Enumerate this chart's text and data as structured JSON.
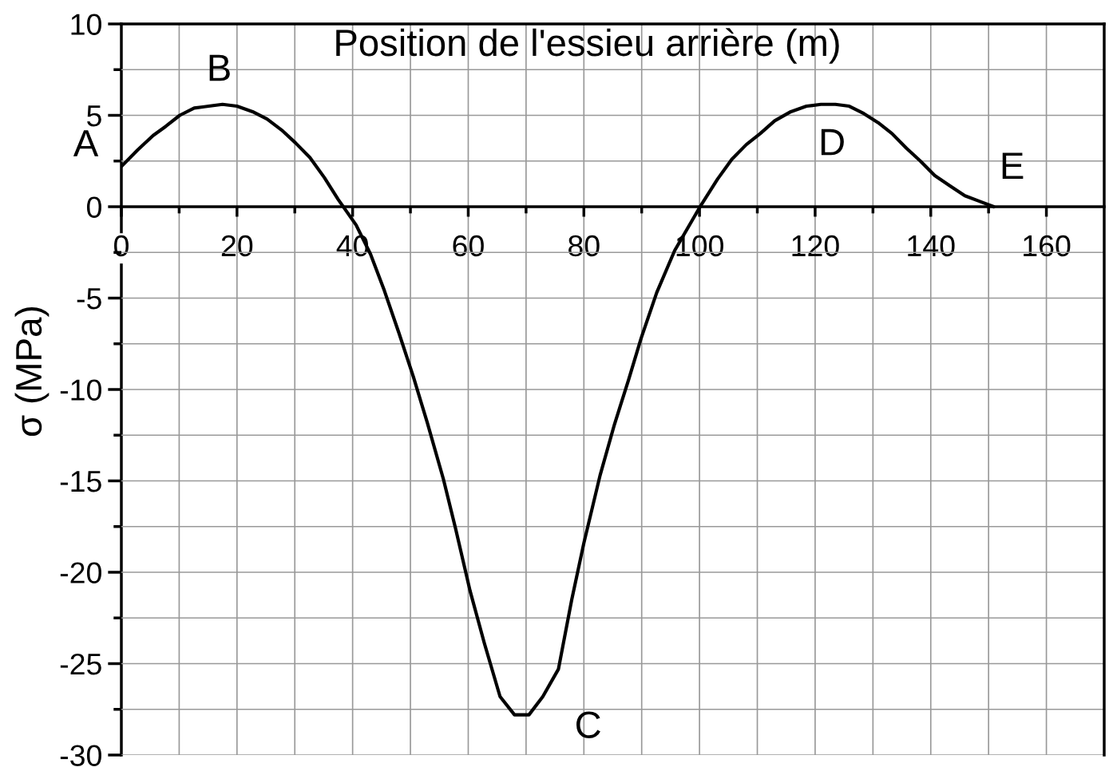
{
  "chart_data": {
    "type": "line",
    "xlabel": "Position de l'essieu arrière (m)",
    "ylabel": "σ (MPa)",
    "x": [
      0,
      2.8,
      5.5,
      7.7,
      10.1,
      12.6,
      15.1,
      17.5,
      20,
      22.7,
      25.2,
      27.7,
      30.1,
      32.6,
      35.1,
      37.5,
      40.6,
      43.1,
      45.5,
      48,
      50.5,
      52.9,
      55.7,
      57.8,
      60.3,
      62.8,
      65.5,
      68,
      70.5,
      72.9,
      75.6,
      77.9,
      80,
      82.8,
      85.3,
      87.7,
      89.9,
      92.6,
      95.7,
      100.1,
      103.1,
      105.6,
      108.1,
      110.5,
      113,
      115.8,
      118.5,
      121,
      123.5,
      125.9,
      128.4,
      130.9,
      133.3,
      135.8,
      138.2,
      140.7,
      143.5,
      145.9,
      148.4,
      150.9
    ],
    "series": [
      {
        "color": "#000000",
        "values": [
          2.2,
          3.1,
          3.9,
          4.4,
          5.0,
          5.4,
          5.5,
          5.6,
          5.5,
          5.2,
          4.8,
          4.2,
          3.5,
          2.7,
          1.6,
          0.4,
          -1.0,
          -2.6,
          -4.6,
          -6.9,
          -9.3,
          -11.8,
          -14.9,
          -17.6,
          -21.0,
          -23.9,
          -26.8,
          -27.8,
          -27.8,
          -26.8,
          -25.3,
          -21.5,
          -18.4,
          -14.7,
          -11.9,
          -9.5,
          -7.2,
          -4.7,
          -2.4,
          0,
          1.5,
          2.6,
          3.4,
          4.0,
          4.7,
          5.2,
          5.5,
          5.6,
          5.6,
          5.5,
          5.1,
          4.6,
          4.0,
          3.2,
          2.5,
          1.7,
          1.1,
          0.6,
          0.3,
          0
        ]
      }
    ],
    "xlim": [
      0,
      170
    ],
    "ylim": [
      -30,
      10
    ],
    "xticks": [
      0,
      {
        "value": 10,
        "label": null
      },
      20,
      {
        "value": 30,
        "label": null
      },
      40,
      {
        "value": 50,
        "label": null
      },
      60,
      {
        "value": 70,
        "label": null
      },
      80,
      {
        "value": 90,
        "label": null
      },
      100,
      {
        "value": 110,
        "label": null
      },
      120,
      {
        "value": 130,
        "label": null
      },
      140,
      {
        "value": 150,
        "label": null
      },
      160
    ],
    "yticks": [
      -30,
      {
        "value": -27.5,
        "label": null
      },
      -25,
      {
        "value": -22.5,
        "label": null
      },
      -20,
      {
        "value": -17.5,
        "label": null
      },
      -15,
      {
        "value": -12.5,
        "label": null
      },
      -10,
      {
        "value": -7.5,
        "label": null
      },
      -5,
      {
        "value": -2.5,
        "label": null
      },
      0,
      {
        "value": 2.5,
        "label": null
      },
      5,
      {
        "value": 7.5,
        "label": null
      },
      10
    ],
    "grid": true,
    "annotations": [
      {
        "text": "A",
        "x": 0,
        "y": 2.2
      },
      {
        "text": "B",
        "x": 17.5,
        "y": 5.6
      },
      {
        "text": "C",
        "x": 70,
        "y": -27.8
      },
      {
        "text": "D",
        "x": 121,
        "y": 5.6
      },
      {
        "text": "E",
        "x": 151,
        "y": 0
      }
    ]
  }
}
